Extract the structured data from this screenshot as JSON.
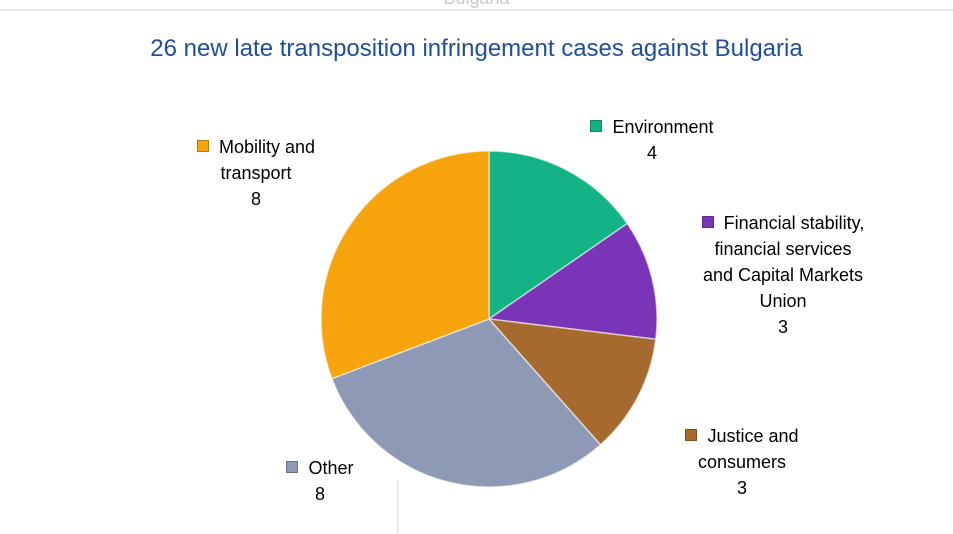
{
  "chart_data": {
    "type": "pie",
    "header_fragment": "Bulgaria",
    "title": "26 new late transposition infringement cases against Bulgaria",
    "categories": [
      "Environment",
      "Financial stability, financial services and Capital Markets Union",
      "Justice and consumers",
      "Other",
      "Mobility and transport"
    ],
    "values": [
      4,
      3,
      3,
      8,
      8
    ],
    "colors": [
      "#14b386",
      "#7a34b8",
      "#a66a2e",
      "#8e99b5",
      "#f6a30c"
    ]
  }
}
